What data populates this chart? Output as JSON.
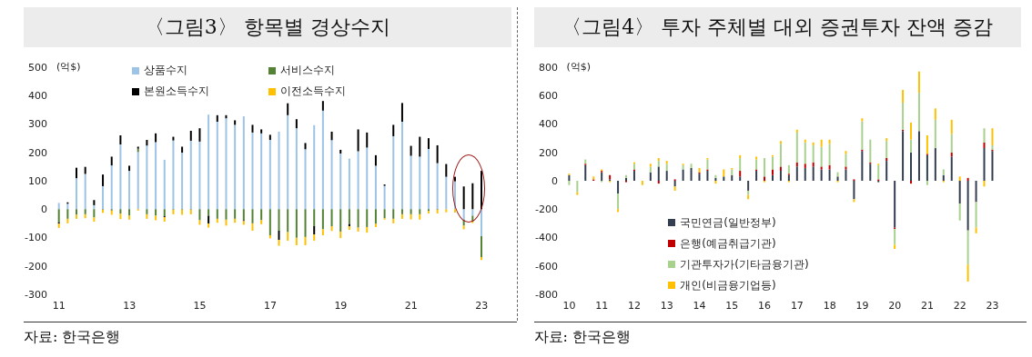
{
  "chart_data": [
    {
      "type": "bar",
      "title": "〈그림3〉 항목별 경상수지",
      "ylabel": "(억$)",
      "stacked": true,
      "legend": "top",
      "categories": [
        "11",
        null,
        null,
        null,
        null,
        null,
        null,
        null,
        "13",
        null,
        null,
        null,
        null,
        null,
        null,
        null,
        "15",
        null,
        null,
        null,
        null,
        null,
        null,
        null,
        "17",
        null,
        null,
        null,
        null,
        null,
        null,
        null,
        "19",
        null,
        null,
        null,
        null,
        null,
        null,
        null,
        "21",
        null,
        null,
        null,
        null,
        null,
        null,
        null,
        "23"
      ],
      "ylim": [
        -300,
        500
      ],
      "yticks": [
        -300,
        -200,
        -100,
        0,
        100,
        200,
        300,
        400,
        500
      ],
      "series": [
        {
          "name": "상품수지",
          "color": "#9dc3e6",
          "values": [
            22,
            19,
            109,
            124,
            14,
            81,
            154,
            228,
            135,
            201,
            224,
            236,
            174,
            242,
            199,
            241,
            238,
            333,
            308,
            320,
            297,
            327,
            270,
            267,
            244,
            273,
            331,
            285,
            211,
            296,
            347,
            243,
            196,
            178,
            204,
            217,
            153,
            82,
            257,
            308,
            188,
            185,
            212,
            162,
            114,
            98,
            -37,
            -23,
            -95
          ]
        },
        {
          "name": "서비스수지",
          "color": "#548235",
          "values": [
            -46,
            -34,
            -20,
            -18,
            -29,
            -2,
            -5,
            -16,
            -23,
            12,
            -18,
            -23,
            -25,
            -2,
            -2,
            -2,
            -39,
            -23,
            -34,
            -37,
            -34,
            -39,
            -50,
            -39,
            -92,
            -76,
            -81,
            -101,
            -98,
            -60,
            -71,
            -60,
            -79,
            -52,
            -65,
            -63,
            -52,
            -32,
            -34,
            -18,
            -18,
            -18,
            -7,
            -2,
            0,
            0,
            -21,
            -21,
            -74
          ]
        },
        {
          "name": "본원소득수지",
          "color": "#000000",
          "values": [
            -5,
            5,
            37,
            25,
            18,
            41,
            31,
            32,
            18,
            7,
            20,
            31,
            -3,
            13,
            21,
            35,
            47,
            -28,
            23,
            11,
            16,
            -3,
            27,
            14,
            18,
            -32,
            42,
            32,
            22,
            -29,
            34,
            30,
            13,
            -8,
            77,
            53,
            37,
            5,
            40,
            66,
            35,
            70,
            38,
            63,
            45,
            16,
            80,
            91,
            135
          ]
        },
        {
          "name": "이전소득수지",
          "color": "#ffc000",
          "values": [
            -15,
            -16,
            -14,
            -14,
            -15,
            -11,
            -15,
            -19,
            -14,
            -5,
            -16,
            -16,
            -16,
            -16,
            -18,
            -16,
            -16,
            -14,
            -14,
            -21,
            -14,
            -13,
            -26,
            -14,
            -11,
            -21,
            -30,
            -26,
            -29,
            -22,
            -21,
            -17,
            -23,
            -13,
            -14,
            -20,
            -11,
            -5,
            -16,
            -16,
            -18,
            -19,
            -8,
            -13,
            -11,
            -12,
            -13,
            -5,
            -10
          ]
        }
      ],
      "annotations": [
        "자료: 한국은행"
      ]
    },
    {
      "type": "bar",
      "title": "〈그림4〉 투자 주체별 대외 증권투자 잔액 증감",
      "ylabel": "(억$)",
      "stacked": true,
      "legend": "bottom left",
      "categories": [
        "10",
        null,
        null,
        null,
        "11",
        null,
        null,
        null,
        "12",
        null,
        null,
        null,
        "13",
        null,
        null,
        null,
        "14",
        null,
        null,
        null,
        "15",
        null,
        null,
        null,
        "16",
        null,
        null,
        null,
        "17",
        null,
        null,
        null,
        "18",
        null,
        null,
        null,
        "19",
        null,
        null,
        null,
        "20",
        null,
        null,
        null,
        "21",
        null,
        null,
        null,
        "22",
        null,
        null,
        null,
        "23"
      ],
      "ylim": [
        -800,
        800
      ],
      "yticks": [
        -800,
        -600,
        -400,
        -200,
        0,
        200,
        400,
        600,
        800
      ],
      "series": [
        {
          "name": "국민연금(일반정부)",
          "color": "#333f50",
          "values": [
            40,
            0,
            110,
            0,
            60,
            10,
            -90,
            20,
            70,
            0,
            60,
            100,
            70,
            -40,
            80,
            90,
            50,
            70,
            20,
            30,
            40,
            30,
            -70,
            70,
            0,
            40,
            70,
            40,
            100,
            90,
            100,
            80,
            80,
            30,
            80,
            -130,
            210,
            120,
            -10,
            140,
            -330,
            350,
            200,
            350,
            180,
            230,
            40,
            170,
            -160,
            -350,
            -150,
            230,
            210
          ]
        },
        {
          "name": "은행(예금취급기관)",
          "color": "#c00000",
          "values": [
            0,
            0,
            10,
            10,
            10,
            30,
            0,
            -10,
            10,
            0,
            0,
            -20,
            0,
            10,
            0,
            0,
            10,
            10,
            0,
            0,
            0,
            40,
            0,
            10,
            30,
            40,
            30,
            10,
            30,
            30,
            30,
            20,
            30,
            0,
            20,
            10,
            10,
            10,
            10,
            20,
            -10,
            10,
            -20,
            0,
            10,
            0,
            0,
            30,
            0,
            20,
            0,
            40,
            10
          ]
        },
        {
          "name": "기관투자가(기타금융기관)",
          "color": "#a9d18e",
          "values": [
            -30,
            -80,
            30,
            0,
            -10,
            0,
            -110,
            20,
            40,
            0,
            40,
            40,
            50,
            0,
            30,
            30,
            0,
            70,
            20,
            0,
            40,
            90,
            -30,
            70,
            130,
            90,
            160,
            60,
            210,
            150,
            120,
            140,
            150,
            30,
            90,
            0,
            200,
            160,
            100,
            120,
            -110,
            190,
            90,
            270,
            -30,
            200,
            40,
            130,
            -120,
            -240,
            -180,
            100,
            30
          ]
        },
        {
          "name": "개인(비금융기업등)",
          "color": "#ffc000",
          "values": [
            10,
            -20,
            0,
            20,
            10,
            -10,
            -20,
            0,
            10,
            -30,
            20,
            20,
            20,
            -30,
            10,
            0,
            30,
            10,
            -20,
            50,
            10,
            20,
            -30,
            20,
            -10,
            10,
            20,
            -10,
            20,
            20,
            20,
            50,
            30,
            -10,
            20,
            -20,
            20,
            0,
            10,
            20,
            -30,
            90,
            120,
            150,
            130,
            80,
            -10,
            100,
            30,
            -120,
            -40,
            -40,
            120
          ]
        }
      ],
      "annotations": [
        "자료: 한국은행"
      ]
    }
  ]
}
